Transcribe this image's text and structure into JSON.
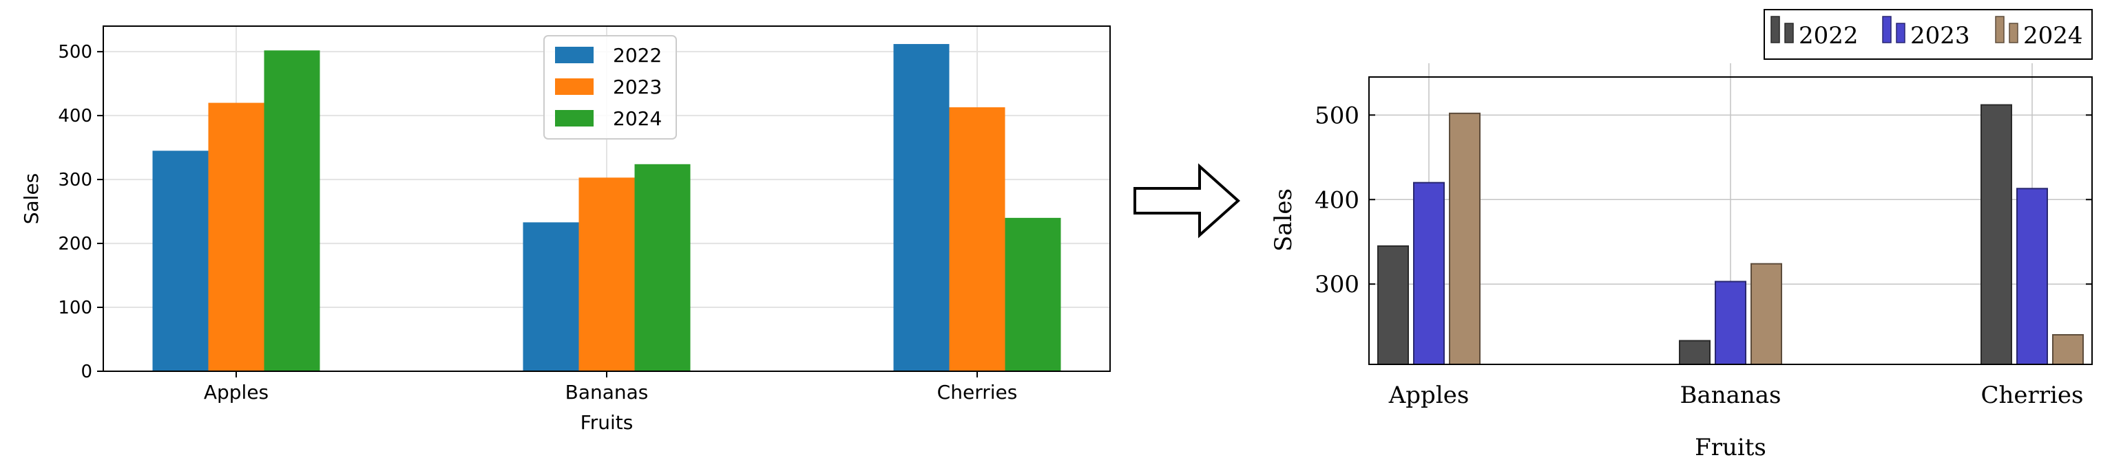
{
  "chart_data": [
    {
      "type": "bar",
      "style": "matplotlib",
      "categories": [
        "Apples",
        "Bananas",
        "Cherries"
      ],
      "series": [
        {
          "name": "2022",
          "color": "#1f77b4",
          "values": [
            345,
            233,
            512
          ]
        },
        {
          "name": "2023",
          "color": "#ff7f0e",
          "values": [
            420,
            303,
            413
          ]
        },
        {
          "name": "2024",
          "color": "#2ca02c",
          "values": [
            502,
            324,
            240
          ]
        }
      ],
      "xlabel": "Fruits",
      "ylabel": "Sales",
      "ylim": [
        0,
        540
      ],
      "yticks": [
        0,
        100,
        200,
        300,
        400,
        500
      ],
      "grid": true,
      "legend": "top-center"
    },
    {
      "type": "bar",
      "style": "pgfplots",
      "categories": [
        "Apples",
        "Bananas",
        "Cherries"
      ],
      "series": [
        {
          "name": "2022",
          "color": "#4d4d4d",
          "values": [
            345,
            233,
            512
          ]
        },
        {
          "name": "2023",
          "color": "#4a46cc",
          "values": [
            420,
            303,
            413
          ]
        },
        {
          "name": "2024",
          "color": "#a98b6c",
          "values": [
            502,
            324,
            240
          ]
        }
      ],
      "xlabel": "Fruits",
      "ylabel": "Sales",
      "ylim": [
        205,
        545
      ],
      "yticks": [
        300,
        400,
        500
      ],
      "grid": true,
      "legend": "top-right outside"
    }
  ],
  "transition_arrow": "right-arrow-icon"
}
